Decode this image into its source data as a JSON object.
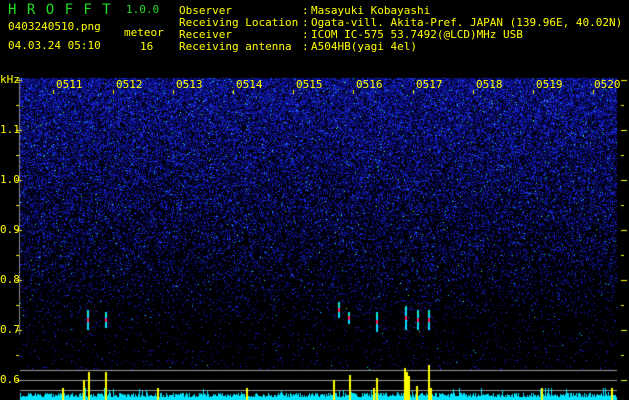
{
  "app": {
    "name": "H R O F F T",
    "version": "1.0.0"
  },
  "file": {
    "name": "0403240510.png",
    "datetime": "04.03.24 05:10"
  },
  "meteor": {
    "label": "meteor",
    "count": "16"
  },
  "info": [
    {
      "label": "Observer",
      "value": "Masayuki Kobayashi"
    },
    {
      "label": "Receiving Location",
      "value": "Ogata-vill. Akita-Pref. JAPAN (139.96E, 40.02N)"
    },
    {
      "label": "Receiver",
      "value": "ICOM IC-575 53.7492(@LCD)MHz USB"
    },
    {
      "label": "Receiving antenna",
      "value": "A504HB(yagi 4el)"
    }
  ],
  "axis": {
    "unit": "kHz",
    "y_ticks": [
      "1.1",
      "1.0",
      "0.9",
      "0.8",
      "0.7",
      "0.6"
    ],
    "time_labels": [
      "0511",
      "0512",
      "0513",
      "0514",
      "0515",
      "0516",
      "0517",
      "0518",
      "0519",
      "0520"
    ]
  },
  "colors": {
    "label": "#ffff00",
    "title": "#22dd22",
    "noise": "#2030ff",
    "histogram": "#00e5ff",
    "meteor_bar": "#ffff00"
  }
}
